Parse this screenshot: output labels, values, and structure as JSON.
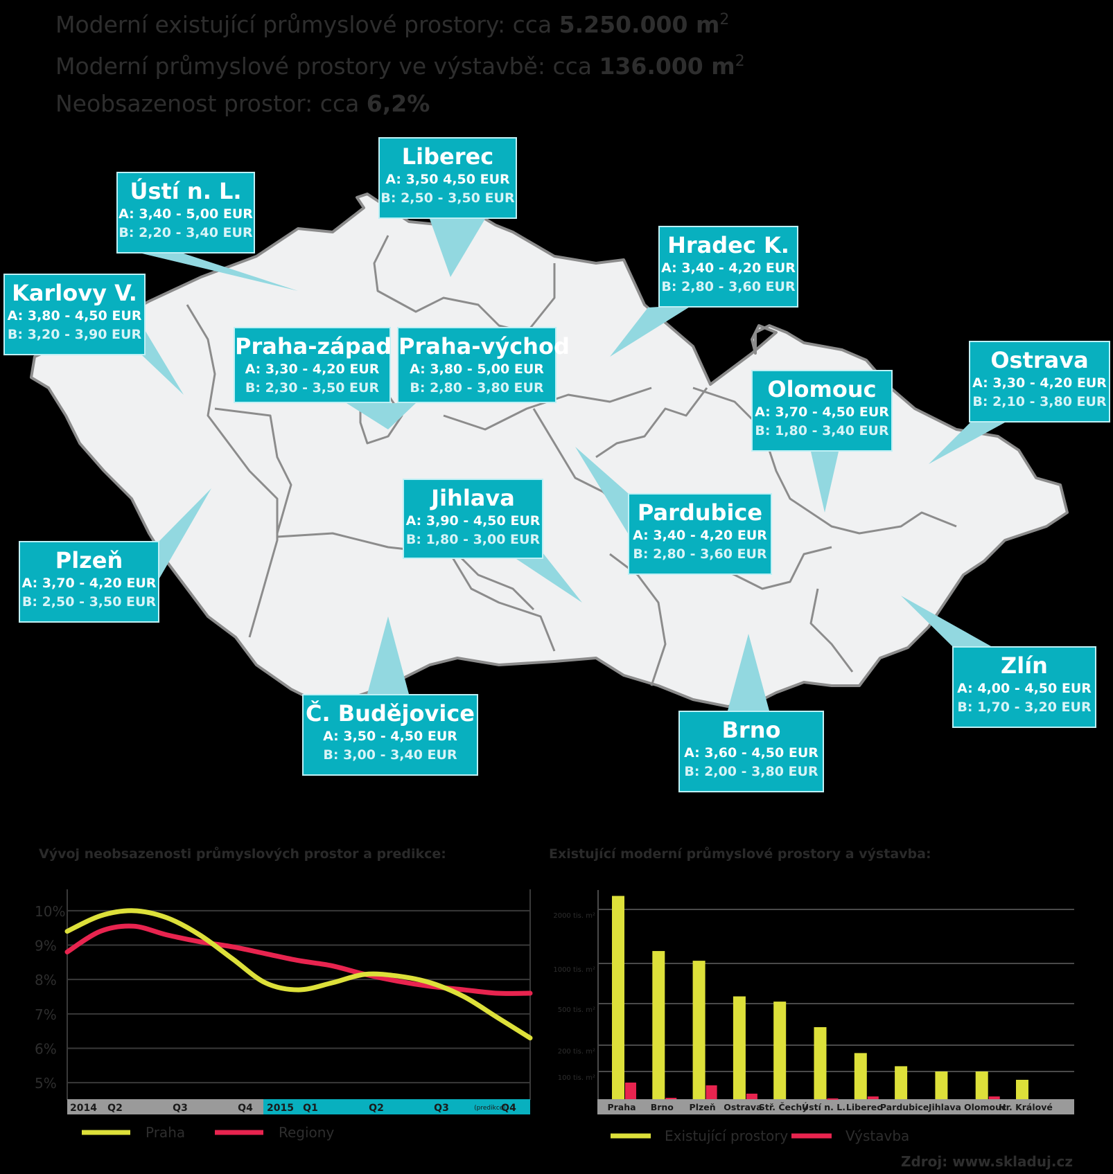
{
  "headline": {
    "existing_label": "Moderní existující průmyslové prostory: cca ",
    "existing_value": "5.250.000 m",
    "construction_label": "Moderní průmyslové prostory ve výstavbě: cca ",
    "construction_value": "136.000 m",
    "sq_unit": "2",
    "vacancy_label": "Neobsazenost prostor: cca ",
    "vacancy_value": "6,2%"
  },
  "colors": {
    "background": "#000000",
    "map_fill": "#f0f1f2",
    "map_border": "#8c8c8c",
    "callout": "#08b0bf",
    "callout_border": "#bff0f5",
    "pointer": "#92d8e0",
    "praha_line": "#dde03a",
    "regiony_line": "#e8244f",
    "existing_bar": "#dde03a",
    "construction_bar": "#e8244f"
  },
  "regions": [
    {
      "name": "Ústí n. L.",
      "a": "A: 3,40 - 5,00 EUR",
      "b": "B: 2,20 - 3,40 EUR"
    },
    {
      "name": "Liberec",
      "a": "A: 3,50  4,50 EUR",
      "b": "B: 2,50 - 3,50 EUR"
    },
    {
      "name": "Hradec K.",
      "a": "A: 3,40 - 4,20 EUR",
      "b": "B: 2,80 - 3,60 EUR"
    },
    {
      "name": "Karlovy V.",
      "a": "A: 3,80 - 4,50 EUR",
      "b": "B: 3,20 - 3,90 EUR"
    },
    {
      "name": "Praha-západ",
      "a": "A: 3,30 - 4,20 EUR",
      "b": "B: 2,30 - 3,50 EUR"
    },
    {
      "name": "Praha-východ",
      "a": "A: 3,80 - 5,00 EUR",
      "b": "B: 2,80 - 3,80 EUR"
    },
    {
      "name": "Ostrava",
      "a": "A: 3,30 - 4,20 EUR",
      "b": "B: 2,10 - 3,80 EUR"
    },
    {
      "name": "Olomouc",
      "a": "A: 3,70 - 4,50 EUR",
      "b": "B: 1,80 - 3,40 EUR"
    },
    {
      "name": "Jihlava",
      "a": "A: 3,90 - 4,50 EUR",
      "b": "B: 1,80 - 3,00 EUR"
    },
    {
      "name": "Pardubice",
      "a": "A: 3,40 - 4,20 EUR",
      "b": "B: 2,80 - 3,60 EUR"
    },
    {
      "name": "Plzeň",
      "a": "A: 3,70 - 4,20 EUR",
      "b": "B: 2,50 - 3,50 EUR"
    },
    {
      "name": "Zlín",
      "a": "A: 4,00 - 4,50 EUR",
      "b": "B: 1,70 - 3,20 EUR"
    },
    {
      "name": "Č. Budějovice",
      "a": "A: 3,50 - 4,50 EUR",
      "b": "B: 3,00 - 3,40 EUR"
    },
    {
      "name": "Brno",
      "a": "A: 3,60 - 4,50 EUR",
      "b": "B: 2,00 - 3,80 EUR"
    }
  ],
  "chart_data": [
    {
      "type": "line",
      "title": "Vývoj neobsazenosti průmyslových prostor a predikce:",
      "yticks": [
        "10%",
        "9%",
        "8%",
        "7%",
        "6%",
        "5%"
      ],
      "ytick_values": [
        10,
        9,
        8,
        7,
        6,
        5
      ],
      "ylim": [
        4.5,
        10.5
      ],
      "x_labels_2014": [
        "2014",
        "Q2",
        "Q3",
        "Q4"
      ],
      "x_labels_2015": [
        "2015",
        "Q1",
        "Q2",
        "Q3",
        "Q4"
      ],
      "prediction_note": "(predikce)",
      "x_positions": [
        0,
        0.5,
        1,
        1.5,
        2,
        2.5,
        3,
        3.5,
        4,
        4.5,
        5,
        5.5,
        6,
        6.5,
        7
      ],
      "xlim": [
        0,
        7
      ],
      "series": [
        {
          "name": "Praha",
          "values": [
            9.4,
            9.85,
            10.0,
            9.8,
            9.3,
            8.6,
            7.9,
            7.7,
            7.9,
            8.15,
            8.1,
            7.9,
            7.5,
            6.9,
            6.3
          ]
        },
        {
          "name": "Regiony",
          "values": [
            8.8,
            9.4,
            9.55,
            9.3,
            9.1,
            8.95,
            8.75,
            8.55,
            8.4,
            8.15,
            7.95,
            7.8,
            7.7,
            7.6,
            7.6
          ]
        }
      ]
    },
    {
      "type": "bar",
      "title": "Existující moderní průmyslové prostory a výstavba:",
      "categories": [
        "Praha",
        "Brno",
        "Plzeň",
        "Ostrava",
        "Stř. Čechy",
        "Ústí n. L.",
        "Liberec",
        "Pardubice",
        "Jihlava",
        "Olomouc",
        "Hr. Králové"
      ],
      "yticks": [
        "2000 tis. m²",
        "1000 tis. m²",
        "500 tis. m²",
        "200 tis. m²",
        "100 tis. m²"
      ],
      "series": [
        {
          "name": "Existující prostory",
          "values": [
            2150,
            1230,
            1050,
            590,
            525,
            330,
            170,
            120,
            100,
            100,
            70
          ]
        },
        {
          "name": "Výstavba",
          "values": [
            60,
            5,
            50,
            20,
            0,
            3,
            10,
            0,
            0,
            10,
            0
          ]
        }
      ]
    }
  ],
  "source": "Zdroj: www.skladuj.cz"
}
